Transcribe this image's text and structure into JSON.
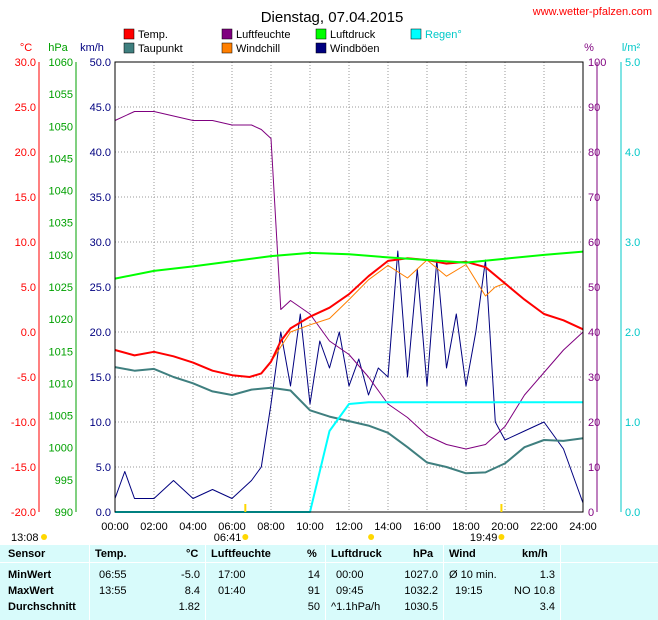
{
  "header": {
    "title": "Dienstag, 07.04.2015",
    "site": "www.wetter-pfalzen.com"
  },
  "legend": [
    {
      "label": "Temp.",
      "color": "#ff0000"
    },
    {
      "label": "Taupunkt",
      "color": "#3f7f7f"
    },
    {
      "label": "Luftfeuchte",
      "color": "#7f007f"
    },
    {
      "label": "Windchill",
      "color": "#ff7f00"
    },
    {
      "label": "Luftdruck",
      "color": "#00ff00"
    },
    {
      "label": "Windböen",
      "color": "#00007f"
    },
    {
      "label": "Regen°",
      "color": "#00ffff"
    }
  ],
  "axes": {
    "temp": {
      "unit": "°C",
      "color": "#ff0000",
      "ticks": [
        "30.0",
        "25.0",
        "20.0",
        "15.0",
        "10.0",
        "5.0",
        "0.0",
        "-5.0",
        "-10.0",
        "-15.0",
        "-20.0"
      ]
    },
    "pressure": {
      "unit": "hPa",
      "color": "#00a000",
      "ticks": [
        "1060",
        "1055",
        "1050",
        "1045",
        "1040",
        "1035",
        "1030",
        "1025",
        "1020",
        "1015",
        "1010",
        "1005",
        "1000",
        "995",
        "990"
      ]
    },
    "wind": {
      "unit": "km/h",
      "color": "#000080",
      "ticks": [
        "50.0",
        "45.0",
        "40.0",
        "35.0",
        "30.0",
        "25.0",
        "20.0",
        "15.0",
        "10.0",
        "5.0",
        "0.0"
      ]
    },
    "humidity": {
      "unit": "%",
      "color": "#7f007f",
      "ticks": [
        "100",
        "90",
        "80",
        "70",
        "60",
        "50",
        "40",
        "30",
        "20",
        "10",
        "0"
      ]
    },
    "rain": {
      "unit": "l/m²",
      "color": "#00c8c8",
      "ticks": [
        "5.0",
        "4.0",
        "3.0",
        "2.0",
        "1.0",
        "0.0"
      ]
    },
    "x": {
      "ticks": [
        "00:00",
        "02:00",
        "04:00",
        "06:00",
        "08:00",
        "10:00",
        "12:00",
        "14:00",
        "16:00",
        "18:00",
        "20:00",
        "22:00",
        "24:00"
      ]
    }
  },
  "markers": {
    "moon": "13:08",
    "sunrise": "06:41",
    "sunset": "19:49"
  },
  "chart_data": {
    "type": "line",
    "x_unit": "hours",
    "temperature": [
      [
        0,
        -2
      ],
      [
        1,
        -2.6
      ],
      [
        2,
        -2.2
      ],
      [
        3,
        -2.7
      ],
      [
        4,
        -3.4
      ],
      [
        5,
        -4.3
      ],
      [
        6,
        -4.8
      ],
      [
        6.9,
        -5
      ],
      [
        7.5,
        -4.6
      ],
      [
        8,
        -3.3
      ],
      [
        8.5,
        -1
      ],
      [
        9,
        0.4
      ],
      [
        10,
        1.7
      ],
      [
        11,
        2.7
      ],
      [
        12,
        4.2
      ],
      [
        13,
        6.2
      ],
      [
        14,
        7.9
      ],
      [
        15,
        8.2
      ],
      [
        16,
        8
      ],
      [
        17,
        7.6
      ],
      [
        18,
        7.8
      ],
      [
        19,
        7.2
      ],
      [
        20,
        5.4
      ],
      [
        21,
        3.6
      ],
      [
        22,
        2
      ],
      [
        23,
        1.3
      ],
      [
        24,
        0.3
      ]
    ],
    "dewpoint": [
      [
        0,
        -3.9
      ],
      [
        1,
        -4.3
      ],
      [
        2,
        -4.1
      ],
      [
        3,
        -5
      ],
      [
        4,
        -5.7
      ],
      [
        5,
        -6.6
      ],
      [
        6,
        -7
      ],
      [
        7,
        -6.4
      ],
      [
        8,
        -6.2
      ],
      [
        9,
        -6.5
      ],
      [
        10,
        -8.7
      ],
      [
        11,
        -9.4
      ],
      [
        12,
        -9.9
      ],
      [
        13,
        -10.4
      ],
      [
        14,
        -11.2
      ],
      [
        15,
        -12.8
      ],
      [
        16,
        -14.5
      ],
      [
        17,
        -15
      ],
      [
        18,
        -15.7
      ],
      [
        19,
        -15.6
      ],
      [
        20,
        -14.6
      ],
      [
        21,
        -12.8
      ],
      [
        22,
        -12
      ],
      [
        23,
        -12.1
      ],
      [
        24,
        -11.8
      ]
    ],
    "humidity": [
      [
        0,
        87
      ],
      [
        1,
        89
      ],
      [
        2,
        89
      ],
      [
        3,
        88
      ],
      [
        4,
        87
      ],
      [
        5,
        87
      ],
      [
        6,
        86
      ],
      [
        7,
        86
      ],
      [
        7.5,
        85
      ],
      [
        8,
        83
      ],
      [
        8.5,
        45
      ],
      [
        9,
        47
      ],
      [
        10,
        44
      ],
      [
        11,
        38
      ],
      [
        12,
        35
      ],
      [
        13,
        30
      ],
      [
        14,
        24
      ],
      [
        15,
        21
      ],
      [
        16,
        17
      ],
      [
        17,
        15
      ],
      [
        18,
        14
      ],
      [
        19,
        15
      ],
      [
        20,
        19
      ],
      [
        21,
        26
      ],
      [
        22,
        31
      ],
      [
        23,
        36
      ],
      [
        24,
        40
      ]
    ],
    "pressure": [
      [
        0,
        1026.3
      ],
      [
        2,
        1027.5
      ],
      [
        4,
        1028.2
      ],
      [
        6,
        1029
      ],
      [
        8,
        1029.8
      ],
      [
        10,
        1030.3
      ],
      [
        12,
        1030.1
      ],
      [
        14,
        1029.6
      ],
      [
        16,
        1029.2
      ],
      [
        18,
        1028.8
      ],
      [
        20,
        1029.4
      ],
      [
        22,
        1030
      ],
      [
        24,
        1030.5
      ]
    ],
    "windchill": [
      [
        8,
        -3.3
      ],
      [
        9,
        0
      ],
      [
        10,
        0.8
      ],
      [
        11,
        1.5
      ],
      [
        12,
        3.6
      ],
      [
        13,
        5.8
      ],
      [
        14,
        7.4
      ],
      [
        15,
        6
      ],
      [
        16,
        8
      ],
      [
        17,
        6.2
      ],
      [
        18,
        7.5
      ],
      [
        19,
        4
      ],
      [
        19.5,
        5
      ],
      [
        20,
        5.4
      ]
    ],
    "gusts": [
      [
        0,
        1.5
      ],
      [
        0.5,
        4.5
      ],
      [
        1,
        1.5
      ],
      [
        2,
        1.5
      ],
      [
        3,
        3.5
      ],
      [
        4,
        1.5
      ],
      [
        5,
        2.5
      ],
      [
        6,
        1.5
      ],
      [
        7,
        3.5
      ],
      [
        7.5,
        5
      ],
      [
        8,
        12
      ],
      [
        8.5,
        20
      ],
      [
        9,
        14
      ],
      [
        9.5,
        22
      ],
      [
        10,
        12
      ],
      [
        10.5,
        19
      ],
      [
        11,
        16
      ],
      [
        11.5,
        20
      ],
      [
        12,
        14
      ],
      [
        12.5,
        17
      ],
      [
        13,
        13
      ],
      [
        13.5,
        16
      ],
      [
        14,
        15
      ],
      [
        14.5,
        29
      ],
      [
        15,
        15
      ],
      [
        15.5,
        27
      ],
      [
        16,
        14
      ],
      [
        16.5,
        28
      ],
      [
        17,
        16
      ],
      [
        17.5,
        22
      ],
      [
        18,
        14
      ],
      [
        18.5,
        20
      ],
      [
        19,
        28
      ],
      [
        19.5,
        10
      ],
      [
        20,
        8
      ],
      [
        21,
        9
      ],
      [
        22,
        10
      ],
      [
        23,
        7
      ],
      [
        24,
        1
      ]
    ],
    "rain": [
      [
        0,
        0
      ],
      [
        10,
        0
      ],
      [
        11,
        0.9
      ],
      [
        12,
        1.2
      ],
      [
        13,
        1.22
      ],
      [
        24,
        1.22
      ]
    ],
    "ranges": {
      "temp": [
        -20,
        30
      ],
      "pressure": [
        990,
        1060
      ],
      "wind": [
        0,
        50
      ],
      "humidity": [
        0,
        100
      ],
      "rain": [
        0,
        5
      ],
      "x": [
        0,
        24
      ]
    },
    "grid": true
  },
  "stats": {
    "headers": {
      "sensor": "Sensor",
      "temp": "Temp.",
      "temp_unit": "°C",
      "hum": "Luftfeuchte",
      "hum_unit": "%",
      "press": "Luftdruck",
      "press_unit": "hPa",
      "wind": "Wind",
      "wind_unit": "km/h"
    },
    "rows": [
      {
        "label": "MinWert",
        "t_time": "06:55",
        "t_val": "-5.0",
        "h_time": "17:00",
        "h_val": "14",
        "p_time": "00:00",
        "p_val": "1027.0",
        "w_label": "Ø 10 min.",
        "w_val": "1.3"
      },
      {
        "label": "MaxWert",
        "t_time": "13:55",
        "t_val": "8.4",
        "h_time": "01:40",
        "h_val": "91",
        "p_time": "09:45",
        "p_val": "1032.2",
        "w_label": "19:15",
        "w_val": "NO 10.8"
      },
      {
        "label": "Durchschnitt",
        "t_time": "",
        "t_val": "1.82",
        "h_time": "",
        "h_val": "50",
        "p_time": "^1.1hPa/h",
        "p_val": "1030.5",
        "w_label": "",
        "w_val": "3.4"
      }
    ]
  }
}
